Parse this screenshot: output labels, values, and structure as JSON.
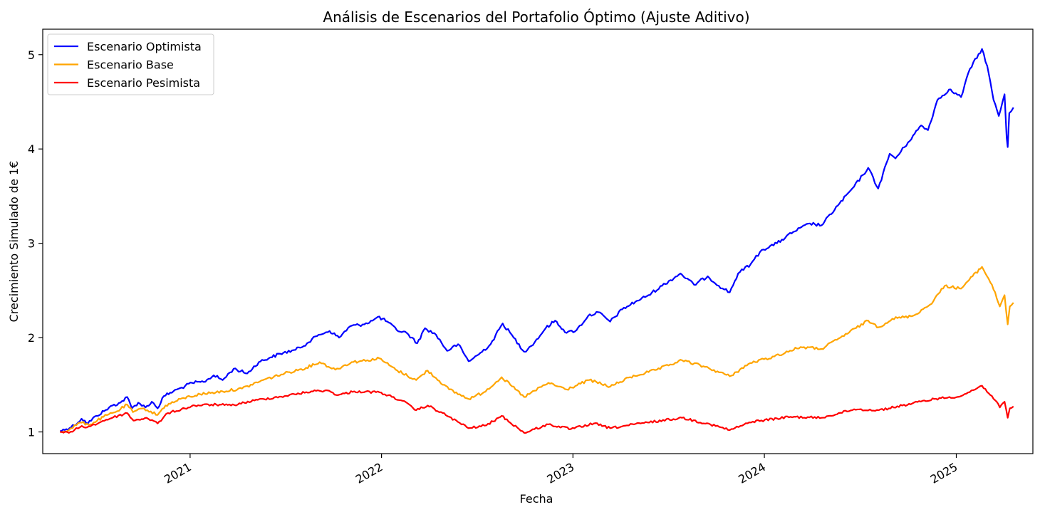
{
  "chart_data": {
    "type": "line",
    "title": "Análisis de Escenarios del Portafolio Óptimo (Ajuste Aditivo)",
    "xlabel": "Fecha",
    "ylabel": "Crecimiento Simulado de 1€",
    "xlim": [
      "2020-03-26",
      "2025-05-27"
    ],
    "ylim": [
      0.77,
      5.27
    ],
    "grid": false,
    "legend_position": "top-left",
    "x_ticks": [
      {
        "date": "2021-01-01",
        "label": "2021"
      },
      {
        "date": "2022-01-01",
        "label": "2022"
      },
      {
        "date": "2023-01-01",
        "label": "2023"
      },
      {
        "date": "2024-01-01",
        "label": "2024"
      },
      {
        "date": "2025-01-01",
        "label": "2025"
      }
    ],
    "y_ticks": [
      {
        "value": 1,
        "label": "1"
      },
      {
        "value": 2,
        "label": "2"
      },
      {
        "value": 3,
        "label": "3"
      },
      {
        "value": 4,
        "label": "4"
      },
      {
        "value": 5,
        "label": "5"
      }
    ],
    "series": [
      {
        "name": "Escenario Optimista",
        "color": "#0000ff",
        "points": [
          [
            "2020-04-28",
            1.01
          ],
          [
            "2020-05-10",
            1.03
          ],
          [
            "2020-05-25",
            1.07
          ],
          [
            "2020-06-08",
            1.14
          ],
          [
            "2020-06-20",
            1.09
          ],
          [
            "2020-07-06",
            1.17
          ],
          [
            "2020-07-21",
            1.22
          ],
          [
            "2020-08-06",
            1.28
          ],
          [
            "2020-08-21",
            1.31
          ],
          [
            "2020-09-03",
            1.37
          ],
          [
            "2020-09-12",
            1.25
          ],
          [
            "2020-09-24",
            1.31
          ],
          [
            "2020-10-08",
            1.26
          ],
          [
            "2020-10-20",
            1.32
          ],
          [
            "2020-10-31",
            1.25
          ],
          [
            "2020-11-12",
            1.38
          ],
          [
            "2020-11-30",
            1.43
          ],
          [
            "2020-12-16",
            1.47
          ],
          [
            "2021-01-05",
            1.52
          ],
          [
            "2021-01-27",
            1.53
          ],
          [
            "2021-02-15",
            1.6
          ],
          [
            "2021-03-04",
            1.55
          ],
          [
            "2021-03-25",
            1.67
          ],
          [
            "2021-04-20",
            1.62
          ],
          [
            "2021-05-12",
            1.74
          ],
          [
            "2021-06-03",
            1.79
          ],
          [
            "2021-06-28",
            1.84
          ],
          [
            "2021-07-21",
            1.87
          ],
          [
            "2021-08-12",
            1.94
          ],
          [
            "2021-09-03",
            2.03
          ],
          [
            "2021-09-24",
            2.07
          ],
          [
            "2021-10-12",
            2.0
          ],
          [
            "2021-11-02",
            2.12
          ],
          [
            "2021-11-26",
            2.14
          ],
          [
            "2021-12-15",
            2.18
          ],
          [
            "2021-12-25",
            2.22
          ],
          [
            "2022-01-12",
            2.17
          ],
          [
            "2022-01-30",
            2.08
          ],
          [
            "2022-02-18",
            2.05
          ],
          [
            "2022-03-10",
            1.94
          ],
          [
            "2022-03-25",
            2.1
          ],
          [
            "2022-04-15",
            2.03
          ],
          [
            "2022-05-06",
            1.86
          ],
          [
            "2022-05-27",
            1.93
          ],
          [
            "2022-06-16",
            1.75
          ],
          [
            "2022-07-05",
            1.82
          ],
          [
            "2022-07-28",
            1.93
          ],
          [
            "2022-08-20",
            2.15
          ],
          [
            "2022-09-10",
            2.0
          ],
          [
            "2022-09-30",
            1.85
          ],
          [
            "2022-10-20",
            1.95
          ],
          [
            "2022-11-10",
            2.1
          ],
          [
            "2022-11-28",
            2.18
          ],
          [
            "2022-12-20",
            2.05
          ],
          [
            "2023-01-08",
            2.08
          ],
          [
            "2023-01-30",
            2.23
          ],
          [
            "2023-02-18",
            2.27
          ],
          [
            "2023-03-13",
            2.17
          ],
          [
            "2023-04-05",
            2.3
          ],
          [
            "2023-04-30",
            2.38
          ],
          [
            "2023-05-25",
            2.45
          ],
          [
            "2023-06-20",
            2.55
          ],
          [
            "2023-07-25",
            2.68
          ],
          [
            "2023-08-20",
            2.56
          ],
          [
            "2023-09-15",
            2.65
          ],
          [
            "2023-10-06",
            2.55
          ],
          [
            "2023-10-27",
            2.48
          ],
          [
            "2023-11-12",
            2.68
          ],
          [
            "2023-12-06",
            2.78
          ],
          [
            "2023-12-27",
            2.93
          ],
          [
            "2024-01-25",
            3.0
          ],
          [
            "2024-02-25",
            3.12
          ],
          [
            "2024-03-28",
            3.21
          ],
          [
            "2024-04-19",
            3.19
          ],
          [
            "2024-05-20",
            3.4
          ],
          [
            "2024-06-20",
            3.6
          ],
          [
            "2024-07-17",
            3.8
          ],
          [
            "2024-08-05",
            3.58
          ],
          [
            "2024-08-27",
            3.95
          ],
          [
            "2024-09-07",
            3.9
          ],
          [
            "2024-10-01",
            4.07
          ],
          [
            "2024-10-26",
            4.25
          ],
          [
            "2024-11-08",
            4.2
          ],
          [
            "2024-11-26",
            4.52
          ],
          [
            "2024-12-18",
            4.63
          ],
          [
            "2025-01-10",
            4.55
          ],
          [
            "2025-01-27",
            4.85
          ],
          [
            "2025-02-19",
            5.06
          ],
          [
            "2025-03-01",
            4.88
          ],
          [
            "2025-03-13",
            4.52
          ],
          [
            "2025-03-23",
            4.35
          ],
          [
            "2025-04-03",
            4.58
          ],
          [
            "2025-04-07",
            4.12
          ],
          [
            "2025-04-09",
            4.02
          ],
          [
            "2025-04-12",
            4.38
          ],
          [
            "2025-04-20",
            4.44
          ]
        ]
      },
      {
        "name": "Escenario Base",
        "color": "#ffa500",
        "points": [
          [
            "2020-04-28",
            1.0
          ],
          [
            "2020-05-15",
            1.02
          ],
          [
            "2020-06-05",
            1.1
          ],
          [
            "2020-06-25",
            1.08
          ],
          [
            "2020-07-20",
            1.16
          ],
          [
            "2020-08-15",
            1.22
          ],
          [
            "2020-09-03",
            1.29
          ],
          [
            "2020-09-14",
            1.21
          ],
          [
            "2020-10-05",
            1.25
          ],
          [
            "2020-10-31",
            1.18
          ],
          [
            "2020-11-15",
            1.28
          ],
          [
            "2020-12-20",
            1.36
          ],
          [
            "2021-01-20",
            1.4
          ],
          [
            "2021-03-04",
            1.43
          ],
          [
            "2021-04-10",
            1.46
          ],
          [
            "2021-05-20",
            1.55
          ],
          [
            "2021-06-30",
            1.62
          ],
          [
            "2021-08-10",
            1.68
          ],
          [
            "2021-09-05",
            1.74
          ],
          [
            "2021-10-05",
            1.66
          ],
          [
            "2021-11-05",
            1.74
          ],
          [
            "2021-12-05",
            1.76
          ],
          [
            "2021-12-28",
            1.78
          ],
          [
            "2022-01-28",
            1.66
          ],
          [
            "2022-03-08",
            1.55
          ],
          [
            "2022-03-30",
            1.65
          ],
          [
            "2022-05-10",
            1.45
          ],
          [
            "2022-06-16",
            1.35
          ],
          [
            "2022-07-15",
            1.42
          ],
          [
            "2022-08-18",
            1.58
          ],
          [
            "2022-09-30",
            1.37
          ],
          [
            "2022-11-15",
            1.52
          ],
          [
            "2022-12-20",
            1.45
          ],
          [
            "2023-02-01",
            1.55
          ],
          [
            "2023-03-13",
            1.48
          ],
          [
            "2023-04-20",
            1.58
          ],
          [
            "2023-06-10",
            1.66
          ],
          [
            "2023-07-28",
            1.76
          ],
          [
            "2023-09-10",
            1.69
          ],
          [
            "2023-10-27",
            1.59
          ],
          [
            "2023-12-05",
            1.73
          ],
          [
            "2024-01-20",
            1.8
          ],
          [
            "2024-03-10",
            1.9
          ],
          [
            "2024-04-19",
            1.88
          ],
          [
            "2024-05-25",
            2.0
          ],
          [
            "2024-07-17",
            2.18
          ],
          [
            "2024-08-06",
            2.11
          ],
          [
            "2024-09-01",
            2.2
          ],
          [
            "2024-10-10",
            2.23
          ],
          [
            "2024-11-12",
            2.35
          ],
          [
            "2024-12-10",
            2.55
          ],
          [
            "2025-01-10",
            2.52
          ],
          [
            "2025-02-01",
            2.65
          ],
          [
            "2025-02-19",
            2.75
          ],
          [
            "2025-03-10",
            2.56
          ],
          [
            "2025-03-25",
            2.33
          ],
          [
            "2025-04-03",
            2.45
          ],
          [
            "2025-04-09",
            2.14
          ],
          [
            "2025-04-13",
            2.33
          ],
          [
            "2025-04-20",
            2.37
          ]
        ]
      },
      {
        "name": "Escenario Pesimista",
        "color": "#ff0000",
        "points": [
          [
            "2020-04-28",
            1.0
          ],
          [
            "2020-05-15",
            0.99
          ],
          [
            "2020-06-05",
            1.05
          ],
          [
            "2020-06-25",
            1.06
          ],
          [
            "2020-07-25",
            1.13
          ],
          [
            "2020-09-03",
            1.2
          ],
          [
            "2020-09-15",
            1.12
          ],
          [
            "2020-10-10",
            1.15
          ],
          [
            "2020-10-31",
            1.09
          ],
          [
            "2020-11-20",
            1.2
          ],
          [
            "2021-01-10",
            1.28
          ],
          [
            "2021-02-20",
            1.29
          ],
          [
            "2021-03-20",
            1.28
          ],
          [
            "2021-05-10",
            1.34
          ],
          [
            "2021-06-30",
            1.38
          ],
          [
            "2021-08-20",
            1.43
          ],
          [
            "2021-09-20",
            1.44
          ],
          [
            "2021-10-10",
            1.39
          ],
          [
            "2021-11-10",
            1.43
          ],
          [
            "2021-12-28",
            1.42
          ],
          [
            "2022-02-10",
            1.33
          ],
          [
            "2022-03-08",
            1.23
          ],
          [
            "2022-03-30",
            1.28
          ],
          [
            "2022-05-10",
            1.16
          ],
          [
            "2022-06-16",
            1.04
          ],
          [
            "2022-07-20",
            1.07
          ],
          [
            "2022-08-18",
            1.17
          ],
          [
            "2022-09-30",
            0.99
          ],
          [
            "2022-11-15",
            1.08
          ],
          [
            "2022-12-28",
            1.03
          ],
          [
            "2023-02-10",
            1.09
          ],
          [
            "2023-03-13",
            1.04
          ],
          [
            "2023-05-10",
            1.09
          ],
          [
            "2023-07-28",
            1.15
          ],
          [
            "2023-09-20",
            1.08
          ],
          [
            "2023-10-27",
            1.02
          ],
          [
            "2023-12-10",
            1.11
          ],
          [
            "2024-02-20",
            1.16
          ],
          [
            "2024-04-19",
            1.15
          ],
          [
            "2024-06-20",
            1.24
          ],
          [
            "2024-08-06",
            1.23
          ],
          [
            "2024-09-20",
            1.28
          ],
          [
            "2024-11-20",
            1.35
          ],
          [
            "2025-01-10",
            1.38
          ],
          [
            "2025-02-19",
            1.49
          ],
          [
            "2025-03-10",
            1.38
          ],
          [
            "2025-03-25",
            1.26
          ],
          [
            "2025-04-03",
            1.32
          ],
          [
            "2025-04-09",
            1.15
          ],
          [
            "2025-04-13",
            1.25
          ],
          [
            "2025-04-20",
            1.27
          ]
        ]
      }
    ]
  }
}
